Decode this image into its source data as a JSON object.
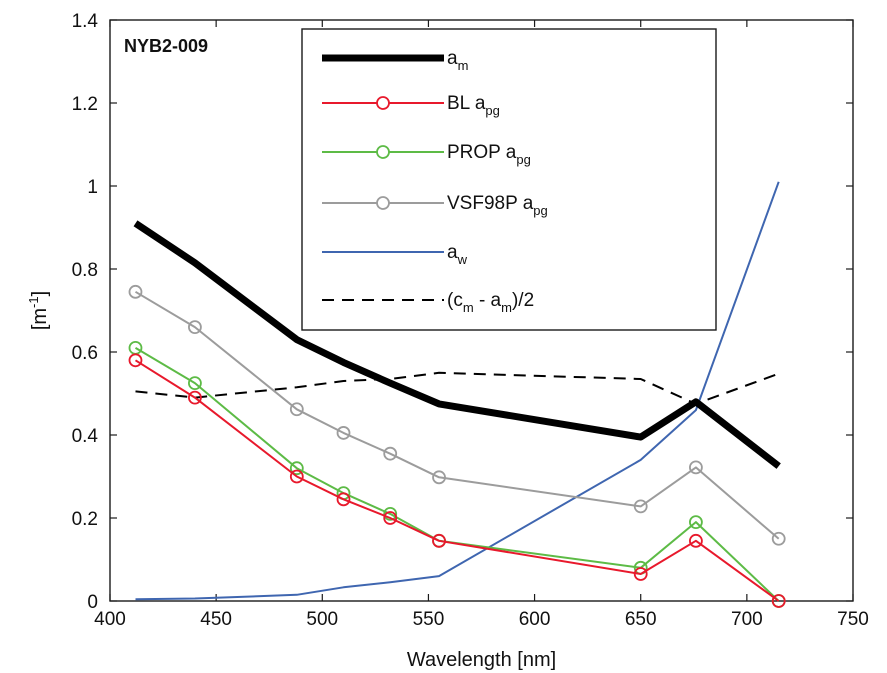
{
  "chart_data": {
    "type": "line",
    "annotation": "NYB2-009",
    "xlabel": "Wavelength [nm]",
    "ylabel": {
      "base": "[m",
      "sup": "-1",
      "close": "]"
    },
    "xlim": [
      400,
      750
    ],
    "ylim": [
      0,
      1.4
    ],
    "xticks": [
      400,
      450,
      500,
      550,
      600,
      650,
      700,
      750
    ],
    "xtick_labels": [
      "400",
      "450",
      "500",
      "550",
      "600",
      "650",
      "700",
      "750"
    ],
    "yticks": [
      0,
      0.2,
      0.4,
      0.6,
      0.8,
      1,
      1.2,
      1.4
    ],
    "ytick_labels": [
      "0",
      "0.2",
      "0.4",
      "0.6",
      "0.8",
      "1",
      "1.2",
      "1.4"
    ],
    "grid": false,
    "legend_position": "top-center",
    "series": [
      {
        "key": "am",
        "label": {
          "main": "a",
          "sub": "m",
          "tail": ""
        },
        "color": "#000000",
        "style": "solid",
        "weight": "heavy",
        "marker": "none",
        "x": [
          412,
          440,
          488,
          510,
          532,
          555,
          650,
          676,
          715
        ],
        "y": [
          0.91,
          0.815,
          0.63,
          0.575,
          0.525,
          0.475,
          0.395,
          0.48,
          0.325
        ]
      },
      {
        "key": "bl",
        "label": {
          "main": "BL a",
          "sub": "pg",
          "tail": ""
        },
        "color": "#e8192c",
        "style": "solid",
        "weight": "normal",
        "marker": "circle",
        "x": [
          412,
          440,
          488,
          510,
          532,
          555,
          650,
          676,
          715
        ],
        "y": [
          0.58,
          0.49,
          0.3,
          0.245,
          0.2,
          0.145,
          0.065,
          0.145,
          0.0
        ]
      },
      {
        "key": "prop",
        "label": {
          "main": "PROP a",
          "sub": "pg",
          "tail": ""
        },
        "color": "#5dbb46",
        "style": "solid",
        "weight": "normal",
        "marker": "circle",
        "x": [
          412,
          440,
          488,
          510,
          532,
          555,
          650,
          676,
          715
        ],
        "y": [
          0.61,
          0.525,
          0.32,
          0.26,
          0.21,
          0.145,
          0.08,
          0.19,
          0.0
        ]
      },
      {
        "key": "vsf",
        "label": {
          "main": "VSF98P a",
          "sub": "pg",
          "tail": ""
        },
        "color": "#9c9c9c",
        "style": "solid",
        "weight": "normal",
        "marker": "circle",
        "x": [
          412,
          440,
          488,
          510,
          532,
          555,
          650,
          676,
          715
        ],
        "y": [
          0.745,
          0.66,
          0.462,
          0.405,
          0.355,
          0.298,
          0.228,
          0.322,
          0.15
        ]
      },
      {
        "key": "aw",
        "label": {
          "main": "a",
          "sub": "w",
          "tail": ""
        },
        "color": "#3f66b0",
        "style": "solid",
        "weight": "normal",
        "marker": "none",
        "x": [
          412,
          440,
          488,
          510,
          532,
          555,
          650,
          676,
          715
        ],
        "y": [
          0.004,
          0.006,
          0.015,
          0.033,
          0.045,
          0.06,
          0.34,
          0.46,
          1.01
        ]
      },
      {
        "key": "cdiff",
        "label": {
          "main": "(c",
          "sub": "m",
          "tail": " - a",
          "sub2": "m",
          "tail2": ")/2"
        },
        "color": "#000000",
        "style": "dashed",
        "weight": "normal",
        "marker": "none",
        "x": [
          412,
          440,
          488,
          510,
          532,
          555,
          650,
          676,
          715
        ],
        "y": [
          0.505,
          0.49,
          0.515,
          0.53,
          0.535,
          0.55,
          0.535,
          0.475,
          0.548
        ]
      }
    ]
  }
}
